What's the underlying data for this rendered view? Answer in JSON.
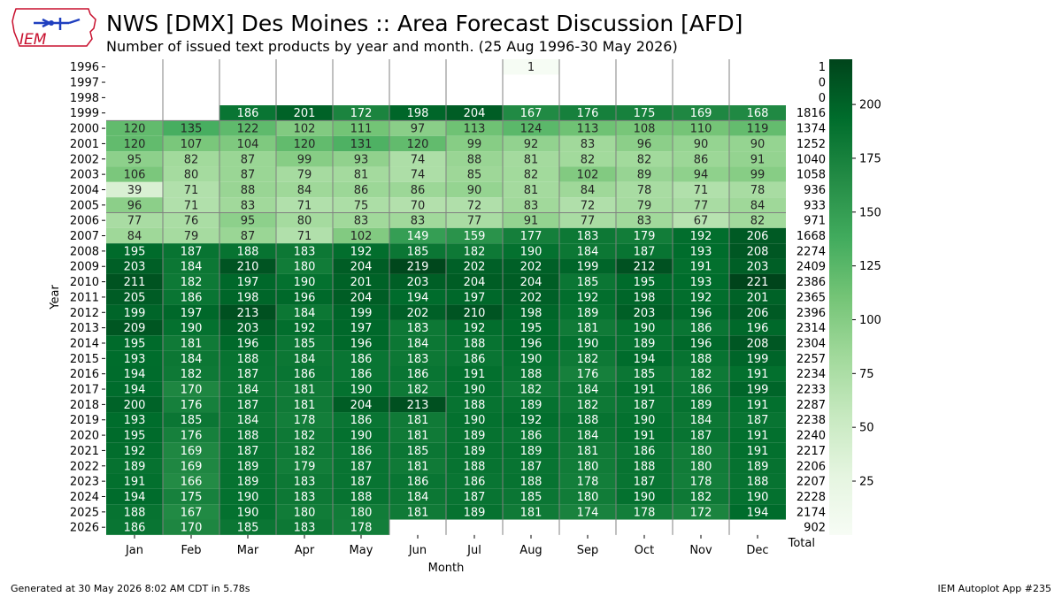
{
  "header": {
    "title": "NWS [DMX] Des Moines :: Area Forecast Discussion [AFD]",
    "subtitle": "Number of issued text products by year and month. (25 Aug 1996-30 May 2026)"
  },
  "logo": {
    "text": "IEM",
    "icon": "iowa-state-outline-logo"
  },
  "footer": {
    "generated": "Generated at 30 May 2026 8:02 AM CDT in 5.78s",
    "app": "IEM Autoplot App #235"
  },
  "colors": {
    "low": "#f7fcf5",
    "high": "#00441b",
    "grid": "#808080",
    "text_light": "#ffffff",
    "text_dark": "#262626"
  },
  "chart_data": {
    "type": "heatmap",
    "xlabel": "Month",
    "ylabel": "Year",
    "total_label": "Total",
    "colorbar": {
      "vmin": 0,
      "vmax": 221,
      "ticks": [
        25,
        50,
        75,
        100,
        125,
        150,
        175,
        200
      ]
    },
    "months": [
      "Jan",
      "Feb",
      "Mar",
      "Apr",
      "May",
      "Jun",
      "Jul",
      "Aug",
      "Sep",
      "Oct",
      "Nov",
      "Dec"
    ],
    "years": [
      1996,
      1997,
      1998,
      1999,
      2000,
      2001,
      2002,
      2003,
      2004,
      2005,
      2006,
      2007,
      2008,
      2009,
      2010,
      2011,
      2012,
      2013,
      2014,
      2015,
      2016,
      2017,
      2018,
      2019,
      2020,
      2021,
      2022,
      2023,
      2024,
      2025,
      2026
    ],
    "values": [
      [
        null,
        null,
        null,
        null,
        null,
        null,
        null,
        1,
        null,
        null,
        null,
        null
      ],
      [
        null,
        null,
        null,
        null,
        null,
        null,
        null,
        null,
        null,
        null,
        null,
        null
      ],
      [
        null,
        null,
        null,
        null,
        null,
        null,
        null,
        null,
        null,
        null,
        null,
        null
      ],
      [
        null,
        null,
        186,
        201,
        172,
        198,
        204,
        167,
        176,
        175,
        169,
        168
      ],
      [
        120,
        135,
        122,
        102,
        111,
        97,
        113,
        124,
        113,
        108,
        110,
        119
      ],
      [
        120,
        107,
        104,
        120,
        131,
        120,
        99,
        92,
        83,
        96,
        90,
        90
      ],
      [
        95,
        82,
        87,
        99,
        93,
        74,
        88,
        81,
        82,
        82,
        86,
        91
      ],
      [
        106,
        80,
        87,
        79,
        81,
        74,
        85,
        82,
        102,
        89,
        94,
        99
      ],
      [
        39,
        71,
        88,
        84,
        86,
        86,
        90,
        81,
        84,
        78,
        71,
        78
      ],
      [
        96,
        71,
        83,
        71,
        75,
        70,
        72,
        83,
        72,
        79,
        77,
        84
      ],
      [
        77,
        76,
        95,
        80,
        83,
        83,
        77,
        91,
        77,
        83,
        67,
        82
      ],
      [
        84,
        79,
        87,
        71,
        102,
        149,
        159,
        177,
        183,
        179,
        192,
        206
      ],
      [
        195,
        187,
        188,
        183,
        192,
        185,
        182,
        190,
        184,
        187,
        193,
        208
      ],
      [
        203,
        184,
        210,
        180,
        204,
        219,
        202,
        202,
        199,
        212,
        191,
        203
      ],
      [
        211,
        182,
        197,
        190,
        201,
        203,
        204,
        204,
        185,
        195,
        193,
        221
      ],
      [
        205,
        186,
        198,
        196,
        204,
        194,
        197,
        202,
        192,
        198,
        192,
        201
      ],
      [
        199,
        197,
        213,
        184,
        199,
        202,
        210,
        198,
        189,
        203,
        196,
        206
      ],
      [
        209,
        190,
        203,
        192,
        197,
        183,
        192,
        195,
        181,
        190,
        186,
        196
      ],
      [
        195,
        181,
        196,
        185,
        196,
        184,
        188,
        196,
        190,
        189,
        196,
        208
      ],
      [
        193,
        184,
        188,
        184,
        186,
        183,
        186,
        190,
        182,
        194,
        188,
        199
      ],
      [
        194,
        182,
        187,
        186,
        186,
        186,
        191,
        188,
        176,
        185,
        182,
        191
      ],
      [
        194,
        170,
        184,
        181,
        190,
        182,
        190,
        182,
        184,
        191,
        186,
        199
      ],
      [
        200,
        176,
        187,
        181,
        204,
        213,
        188,
        189,
        182,
        187,
        189,
        191
      ],
      [
        193,
        185,
        184,
        178,
        186,
        181,
        190,
        192,
        188,
        190,
        184,
        187
      ],
      [
        195,
        176,
        188,
        182,
        190,
        181,
        189,
        186,
        184,
        191,
        187,
        191
      ],
      [
        192,
        169,
        187,
        182,
        186,
        185,
        189,
        189,
        181,
        186,
        180,
        191
      ],
      [
        189,
        169,
        189,
        179,
        187,
        181,
        188,
        187,
        180,
        188,
        180,
        189
      ],
      [
        191,
        166,
        189,
        183,
        187,
        186,
        186,
        188,
        178,
        187,
        178,
        188
      ],
      [
        194,
        175,
        190,
        183,
        188,
        184,
        187,
        185,
        180,
        190,
        182,
        190
      ],
      [
        188,
        167,
        190,
        180,
        180,
        181,
        189,
        181,
        174,
        178,
        172,
        194
      ],
      [
        186,
        170,
        185,
        183,
        178,
        null,
        null,
        null,
        null,
        null,
        null,
        null
      ]
    ],
    "totals": [
      1,
      0,
      0,
      1816,
      1374,
      1252,
      1040,
      1058,
      936,
      933,
      971,
      1668,
      2274,
      2409,
      2386,
      2365,
      2396,
      2314,
      2304,
      2257,
      2234,
      2233,
      2287,
      2238,
      2240,
      2217,
      2206,
      2207,
      2228,
      2174,
      902
    ]
  }
}
